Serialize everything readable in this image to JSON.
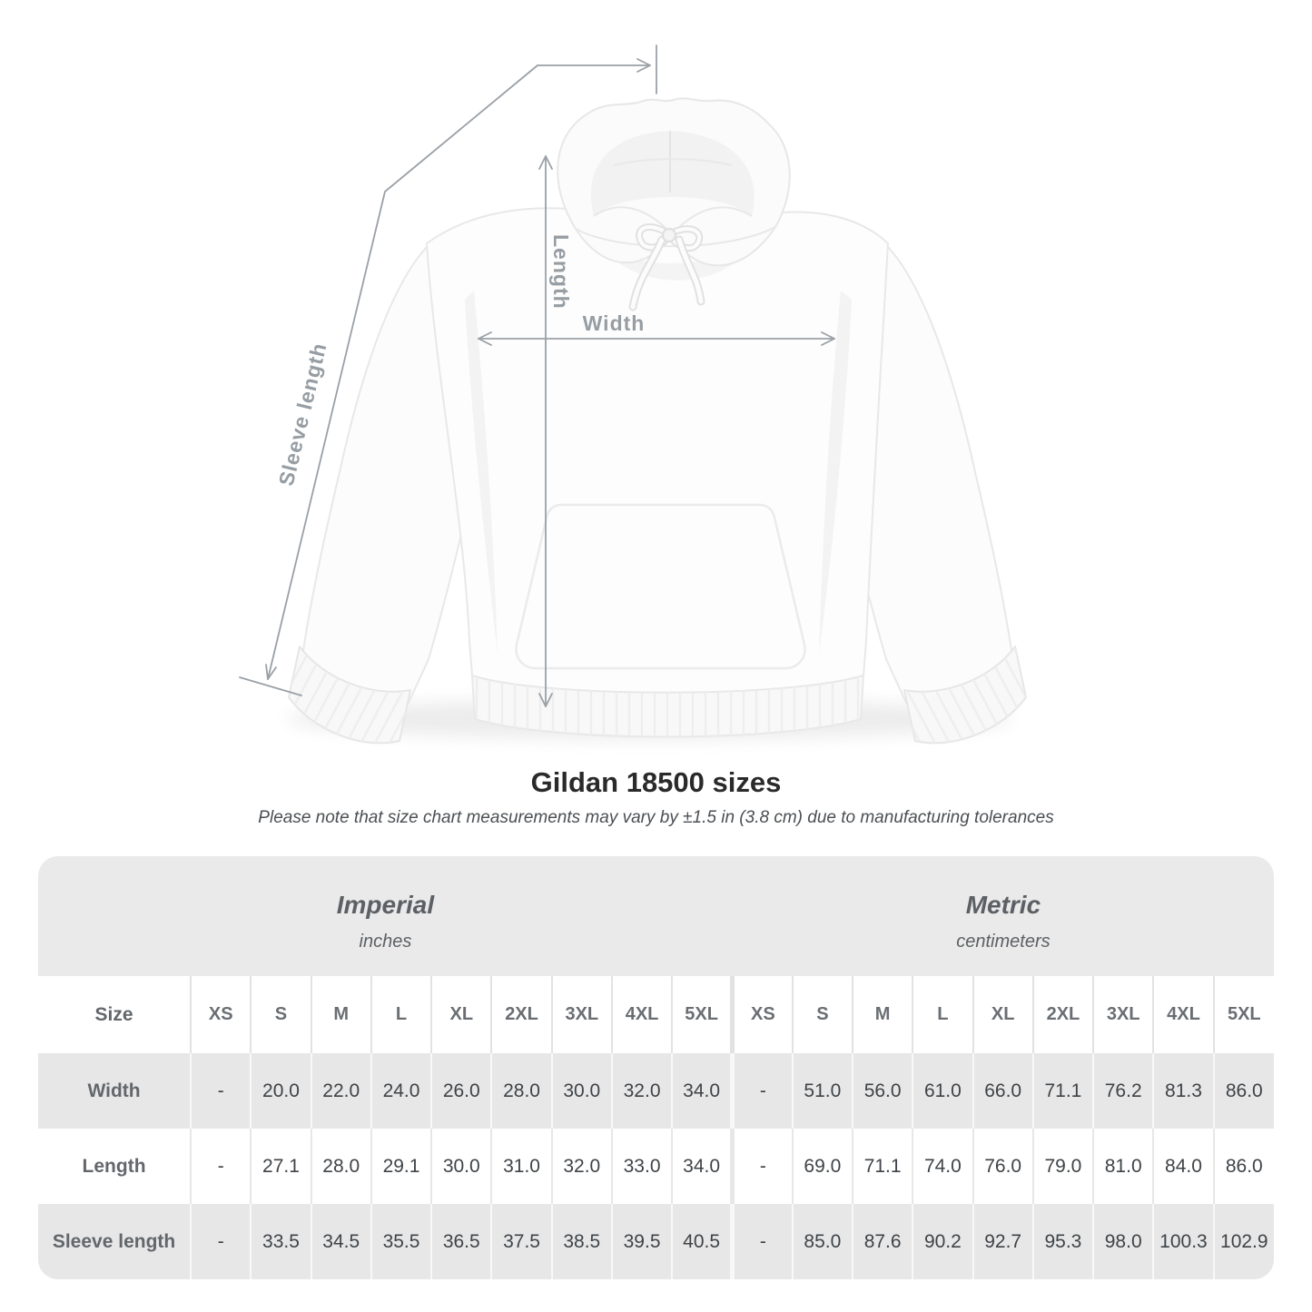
{
  "diagram": {
    "length_label": "Length",
    "width_label": "Width",
    "sleeve_label": "Sleeve length"
  },
  "title": "Gildan 18500 sizes",
  "subtitle": "Please note that size chart measurements may vary by ±1.5 in (3.8 cm) due to manufacturing tolerances",
  "table": {
    "imperial": {
      "title": "Imperial",
      "subtitle": "inches"
    },
    "metric": {
      "title": "Metric",
      "subtitle": "centimeters"
    },
    "size_label": "Size",
    "sizes": [
      "XS",
      "S",
      "M",
      "L",
      "XL",
      "2XL",
      "3XL",
      "4XL",
      "5XL"
    ],
    "rows": [
      {
        "label": "Width",
        "imperial": [
          "-",
          "20.0",
          "22.0",
          "24.0",
          "26.0",
          "28.0",
          "30.0",
          "32.0",
          "34.0"
        ],
        "metric": [
          "-",
          "51.0",
          "56.0",
          "61.0",
          "66.0",
          "71.1",
          "76.2",
          "81.3",
          "86.0"
        ]
      },
      {
        "label": "Length",
        "imperial": [
          "-",
          "27.1",
          "28.0",
          "29.1",
          "30.0",
          "31.0",
          "32.0",
          "33.0",
          "34.0"
        ],
        "metric": [
          "-",
          "69.0",
          "71.1",
          "74.0",
          "76.0",
          "79.0",
          "81.0",
          "84.0",
          "86.0"
        ]
      },
      {
        "label": "Sleeve length",
        "imperial": [
          "-",
          "33.5",
          "34.5",
          "35.5",
          "36.5",
          "37.5",
          "38.5",
          "39.5",
          "40.5"
        ],
        "metric": [
          "-",
          "85.0",
          "87.6",
          "90.2",
          "92.7",
          "95.3",
          "98.0",
          "100.3",
          "102.9"
        ]
      }
    ]
  },
  "colors": {
    "measurement_lines": "#9aa0a6",
    "card_background": "#eaeaea",
    "shaded_row": "#e7e7e7"
  }
}
